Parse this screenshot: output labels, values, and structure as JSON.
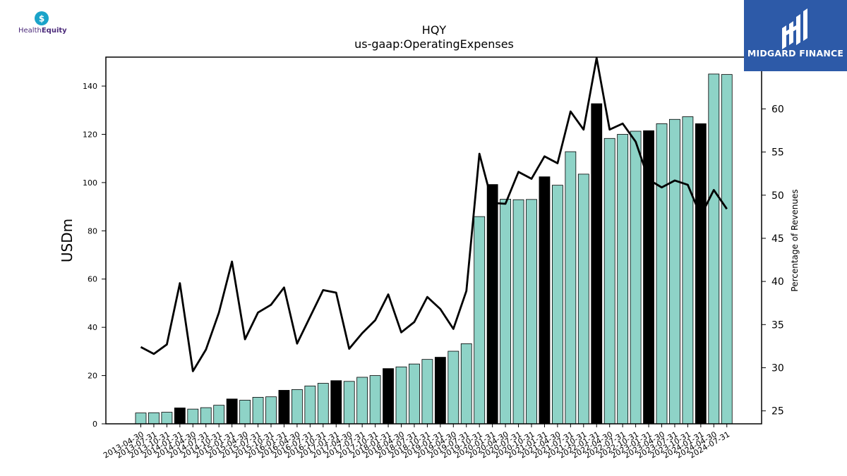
{
  "header": {
    "company_logo_text_a": "Health",
    "company_logo_text_b": "Equity",
    "brand_name": "MIDGARD FINANCE"
  },
  "colors": {
    "bar_teal": "#8ed3c7",
    "bar_black": "#000000",
    "line": "#000000",
    "brand_bg": "#2d5aa8",
    "he_teal": "#1aa3c9",
    "he_purple": "#4b2a7a"
  },
  "chart_data": {
    "type": "bar",
    "title": "HQY",
    "subtitle": "us-gaap:OperatingExpenses",
    "ylabel": "USDm",
    "y2label": "Percentage of Revenues",
    "ylim": [
      0,
      152
    ],
    "y2lim": [
      23.5,
      66
    ],
    "yticks": [
      0,
      20,
      40,
      60,
      80,
      100,
      120,
      140
    ],
    "y2ticks": [
      25,
      30,
      35,
      40,
      45,
      50,
      55,
      60
    ],
    "grid": false,
    "categories": [
      "2013-04-30",
      "2013-07-31",
      "2013-10-31",
      "2014-01-31",
      "2014-04-30",
      "2014-07-31",
      "2014-10-31",
      "2015-01-31",
      "2015-04-30",
      "2015-07-31",
      "2015-10-31",
      "2016-01-31",
      "2016-04-30",
      "2016-07-31",
      "2016-10-31",
      "2017-01-31",
      "2017-04-30",
      "2017-07-31",
      "2017-10-31",
      "2018-01-31",
      "2018-04-30",
      "2018-07-31",
      "2018-10-31",
      "2019-01-31",
      "2019-04-30",
      "2019-07-31",
      "2019-10-31",
      "2020-01-31",
      "2020-04-30",
      "2020-07-31",
      "2020-10-31",
      "2021-01-31",
      "2021-04-30",
      "2021-07-31",
      "2021-10-31",
      "2022-01-31",
      "2022-04-30",
      "2022-07-31",
      "2022-10-31",
      "2023-01-31",
      "2023-04-30",
      "2023-07-31",
      "2023-10-31",
      "2024-01-31",
      "2024-04-30",
      "2024-07-31"
    ],
    "series": [
      {
        "name": "",
        "type": "bar",
        "values": [
          4.5,
          4.6,
          4.8,
          6.6,
          6.1,
          6.7,
          7.7,
          10.3,
          9.8,
          11.0,
          11.2,
          13.9,
          14.2,
          15.7,
          16.8,
          17.9,
          17.6,
          19.3,
          20.0,
          22.9,
          23.6,
          24.8,
          26.7,
          27.6,
          30.1,
          33.2,
          85.9,
          99.2,
          93.1,
          92.9,
          93.0,
          102.4,
          98.9,
          112.8,
          103.5,
          132.7,
          118.3,
          120.0,
          121.3,
          121.5,
          124.4,
          126.2,
          127.3,
          124.4,
          145.0,
          144.8
        ],
        "annual_flags": [
          false,
          false,
          false,
          true,
          false,
          false,
          false,
          true,
          false,
          false,
          false,
          true,
          false,
          false,
          false,
          true,
          false,
          false,
          false,
          true,
          false,
          false,
          false,
          true,
          false,
          false,
          false,
          true,
          false,
          false,
          false,
          true,
          false,
          false,
          false,
          true,
          false,
          false,
          false,
          true,
          false,
          false,
          false,
          true,
          false,
          false
        ]
      },
      {
        "name": "",
        "type": "line",
        "axis": "right",
        "values": [
          32.4,
          31.6,
          32.7,
          39.8,
          29.6,
          32.1,
          36.4,
          42.3,
          33.3,
          36.4,
          37.3,
          39.3,
          32.8,
          35.9,
          39.0,
          38.7,
          32.2,
          34.0,
          35.5,
          38.5,
          34.1,
          35.3,
          38.2,
          36.8,
          34.5,
          38.9,
          54.8,
          49.1,
          49.0,
          52.7,
          51.9,
          54.5,
          53.7,
          59.7,
          57.6,
          65.9,
          57.6,
          58.3,
          56.2,
          51.8,
          50.9,
          51.7,
          51.2,
          47.6,
          50.6,
          48.4
        ]
      }
    ]
  }
}
